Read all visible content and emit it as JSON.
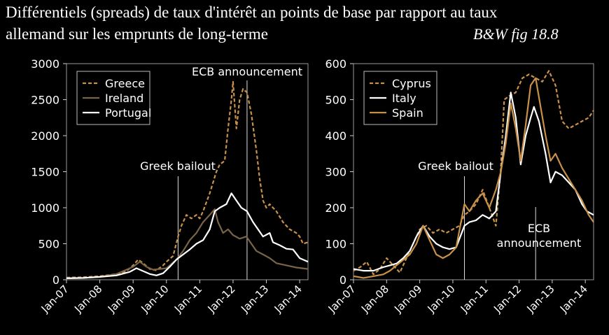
{
  "header": {
    "title_line1": "Différentiels (spreads) de taux d'intérêt an points de base par rapport au taux",
    "title_line2": "allemand sur les emprunts de long-terme",
    "credit": "B&W fig 18.8"
  },
  "colors": {
    "background": "#000000",
    "greece": "#c8914a",
    "ireland": "#7a6446",
    "portugal": "#ffffff",
    "cyprus": "#c8914a",
    "italy": "#ffffff",
    "spain": "#c8914a"
  },
  "chart_data": [
    {
      "type": "line",
      "title": "",
      "xlabel": "",
      "ylabel": "",
      "x_tick_labels": [
        "Jan-07",
        "Jan-08",
        "Jan-09",
        "Jan-10",
        "Jan-11",
        "Jan-12",
        "Jan-13",
        "Jan-14"
      ],
      "xlim": [
        2007.0,
        2014.25
      ],
      "ylim": [
        0,
        3000
      ],
      "y_ticks": [
        0,
        500,
        1000,
        1500,
        2000,
        2500,
        3000
      ],
      "legend_position": "top-left",
      "annotations": [
        {
          "label": "Greek bailout",
          "x": 2010.35
        },
        {
          "label": "ECB announcement",
          "x": 2012.42
        }
      ],
      "series": [
        {
          "name": "Greece",
          "style": "dashed",
          "color": "#c8914a",
          "points": [
            [
              2007.0,
              30
            ],
            [
              2007.5,
              35
            ],
            [
              2008.0,
              50
            ],
            [
              2008.5,
              80
            ],
            [
              2008.8,
              120
            ],
            [
              2009.0,
              200
            ],
            [
              2009.15,
              280
            ],
            [
              2009.3,
              230
            ],
            [
              2009.5,
              150
            ],
            [
              2009.7,
              130
            ],
            [
              2009.9,
              200
            ],
            [
              2010.0,
              250
            ],
            [
              2010.2,
              330
            ],
            [
              2010.35,
              600
            ],
            [
              2010.45,
              750
            ],
            [
              2010.6,
              900
            ],
            [
              2010.75,
              850
            ],
            [
              2010.9,
              900
            ],
            [
              2011.0,
              850
            ],
            [
              2011.1,
              950
            ],
            [
              2011.3,
              1200
            ],
            [
              2011.5,
              1500
            ],
            [
              2011.6,
              1600
            ],
            [
              2011.75,
              1650
            ],
            [
              2011.85,
              2100
            ],
            [
              2011.95,
              2500
            ],
            [
              2012.0,
              2750
            ],
            [
              2012.1,
              2100
            ],
            [
              2012.2,
              2500
            ],
            [
              2012.3,
              2650
            ],
            [
              2012.42,
              2600
            ],
            [
              2012.55,
              2300
            ],
            [
              2012.7,
              1800
            ],
            [
              2012.8,
              1400
            ],
            [
              2012.9,
              1100
            ],
            [
              2013.0,
              1000
            ],
            [
              2013.1,
              1050
            ],
            [
              2013.3,
              950
            ],
            [
              2013.5,
              800
            ],
            [
              2013.7,
              700
            ],
            [
              2013.9,
              650
            ],
            [
              2014.0,
              600
            ],
            [
              2014.1,
              500
            ],
            [
              2014.25,
              520
            ]
          ]
        },
        {
          "name": "Ireland",
          "style": "solid",
          "color": "#7a6446",
          "points": [
            [
              2007.0,
              20
            ],
            [
              2007.5,
              25
            ],
            [
              2008.0,
              40
            ],
            [
              2008.5,
              80
            ],
            [
              2009.0,
              180
            ],
            [
              2009.2,
              250
            ],
            [
              2009.4,
              180
            ],
            [
              2009.6,
              140
            ],
            [
              2009.8,
              150
            ],
            [
              2010.0,
              160
            ],
            [
              2010.3,
              280
            ],
            [
              2010.5,
              400
            ],
            [
              2010.7,
              550
            ],
            [
              2010.9,
              650
            ],
            [
              2011.1,
              800
            ],
            [
              2011.3,
              900
            ],
            [
              2011.45,
              980
            ],
            [
              2011.55,
              800
            ],
            [
              2011.7,
              650
            ],
            [
              2011.85,
              700
            ],
            [
              2012.0,
              620
            ],
            [
              2012.2,
              570
            ],
            [
              2012.4,
              600
            ],
            [
              2012.55,
              500
            ],
            [
              2012.7,
              400
            ],
            [
              2012.9,
              350
            ],
            [
              2013.1,
              300
            ],
            [
              2013.3,
              230
            ],
            [
              2013.6,
              200
            ],
            [
              2013.9,
              170
            ],
            [
              2014.25,
              150
            ]
          ]
        },
        {
          "name": "Portugal",
          "style": "solid",
          "color": "#ffffff",
          "points": [
            [
              2007.0,
              20
            ],
            [
              2007.5,
              25
            ],
            [
              2008.0,
              40
            ],
            [
              2008.5,
              60
            ],
            [
              2008.9,
              110
            ],
            [
              2009.1,
              160
            ],
            [
              2009.3,
              120
            ],
            [
              2009.5,
              80
            ],
            [
              2009.7,
              60
            ],
            [
              2009.9,
              90
            ],
            [
              2010.1,
              180
            ],
            [
              2010.3,
              280
            ],
            [
              2010.5,
              350
            ],
            [
              2010.7,
              420
            ],
            [
              2010.9,
              500
            ],
            [
              2011.1,
              550
            ],
            [
              2011.3,
              700
            ],
            [
              2011.45,
              950
            ],
            [
              2011.6,
              1000
            ],
            [
              2011.8,
              1050
            ],
            [
              2011.95,
              1200
            ],
            [
              2012.1,
              1100
            ],
            [
              2012.25,
              1000
            ],
            [
              2012.42,
              950
            ],
            [
              2012.6,
              800
            ],
            [
              2012.75,
              700
            ],
            [
              2012.9,
              600
            ],
            [
              2013.1,
              650
            ],
            [
              2013.2,
              520
            ],
            [
              2013.4,
              480
            ],
            [
              2013.6,
              430
            ],
            [
              2013.8,
              420
            ],
            [
              2014.0,
              300
            ],
            [
              2014.25,
              250
            ]
          ]
        }
      ]
    },
    {
      "type": "line",
      "title": "",
      "xlabel": "",
      "ylabel": "",
      "x_tick_labels": [
        "Jan-07",
        "Jan-08",
        "Jan-09",
        "Jan-10",
        "Jan-11",
        "Jan-12",
        "Jan-13",
        "Jan-14"
      ],
      "xlim": [
        2007.0,
        2014.25
      ],
      "ylim": [
        0,
        600
      ],
      "y_ticks": [
        0,
        100,
        200,
        300,
        400,
        500,
        600
      ],
      "legend_position": "top-left",
      "annotations": [
        {
          "label": "Greek bailout",
          "x": 2010.35
        },
        {
          "label": "ECB announcement",
          "x": 2012.5
        }
      ],
      "series": [
        {
          "name": "Cyprus",
          "style": "dashed",
          "color": "#c8914a",
          "points": [
            [
              2007.0,
              25
            ],
            [
              2007.2,
              35
            ],
            [
              2007.4,
              50
            ],
            [
              2007.6,
              15
            ],
            [
              2007.8,
              30
            ],
            [
              2008.0,
              60
            ],
            [
              2008.2,
              40
            ],
            [
              2008.4,
              20
            ],
            [
              2008.6,
              60
            ],
            [
              2008.8,
              100
            ],
            [
              2009.0,
              140
            ],
            [
              2009.2,
              150
            ],
            [
              2009.4,
              130
            ],
            [
              2009.6,
              140
            ],
            [
              2009.8,
              130
            ],
            [
              2010.0,
              140
            ],
            [
              2010.2,
              150
            ],
            [
              2010.35,
              180
            ],
            [
              2010.5,
              190
            ],
            [
              2010.7,
              210
            ],
            [
              2010.9,
              250
            ],
            [
              2011.1,
              200
            ],
            [
              2011.3,
              150
            ],
            [
              2011.45,
              310
            ],
            [
              2011.55,
              500
            ],
            [
              2011.7,
              510
            ],
            [
              2011.9,
              520
            ],
            [
              2012.1,
              560
            ],
            [
              2012.3,
              570
            ],
            [
              2012.5,
              560
            ],
            [
              2012.7,
              550
            ],
            [
              2012.9,
              580
            ],
            [
              2013.1,
              540
            ],
            [
              2013.3,
              440
            ],
            [
              2013.5,
              420
            ],
            [
              2013.7,
              430
            ],
            [
              2013.9,
              440
            ],
            [
              2014.1,
              450
            ],
            [
              2014.25,
              470
            ]
          ]
        },
        {
          "name": "Italy",
          "style": "solid",
          "color": "#ffffff",
          "points": [
            [
              2007.0,
              30
            ],
            [
              2007.3,
              25
            ],
            [
              2007.6,
              25
            ],
            [
              2007.9,
              35
            ],
            [
              2008.1,
              40
            ],
            [
              2008.3,
              45
            ],
            [
              2008.5,
              60
            ],
            [
              2008.7,
              80
            ],
            [
              2008.9,
              120
            ],
            [
              2009.1,
              150
            ],
            [
              2009.3,
              120
            ],
            [
              2009.5,
              100
            ],
            [
              2009.7,
              90
            ],
            [
              2009.9,
              85
            ],
            [
              2010.1,
              90
            ],
            [
              2010.35,
              150
            ],
            [
              2010.5,
              160
            ],
            [
              2010.7,
              165
            ],
            [
              2010.9,
              180
            ],
            [
              2011.1,
              170
            ],
            [
              2011.3,
              190
            ],
            [
              2011.45,
              300
            ],
            [
              2011.6,
              400
            ],
            [
              2011.75,
              520
            ],
            [
              2011.9,
              450
            ],
            [
              2012.05,
              320
            ],
            [
              2012.2,
              400
            ],
            [
              2012.35,
              450
            ],
            [
              2012.45,
              480
            ],
            [
              2012.6,
              440
            ],
            [
              2012.8,
              350
            ],
            [
              2012.95,
              270
            ],
            [
              2013.1,
              300
            ],
            [
              2013.3,
              290
            ],
            [
              2013.5,
              270
            ],
            [
              2013.7,
              250
            ],
            [
              2013.9,
              210
            ],
            [
              2014.05,
              190
            ],
            [
              2014.25,
              180
            ]
          ]
        },
        {
          "name": "Spain",
          "style": "solid",
          "color": "#c8914a",
          "points": [
            [
              2007.0,
              10
            ],
            [
              2007.3,
              5
            ],
            [
              2007.6,
              10
            ],
            [
              2007.9,
              15
            ],
            [
              2008.1,
              25
            ],
            [
              2008.3,
              40
            ],
            [
              2008.5,
              55
            ],
            [
              2008.7,
              70
            ],
            [
              2008.9,
              100
            ],
            [
              2009.1,
              150
            ],
            [
              2009.3,
              110
            ],
            [
              2009.5,
              70
            ],
            [
              2009.7,
              60
            ],
            [
              2009.9,
              70
            ],
            [
              2010.1,
              90
            ],
            [
              2010.35,
              210
            ],
            [
              2010.5,
              190
            ],
            [
              2010.7,
              220
            ],
            [
              2010.9,
              240
            ],
            [
              2011.1,
              200
            ],
            [
              2011.3,
              250
            ],
            [
              2011.45,
              300
            ],
            [
              2011.6,
              380
            ],
            [
              2011.75,
              490
            ],
            [
              2011.9,
              420
            ],
            [
              2012.05,
              330
            ],
            [
              2012.2,
              430
            ],
            [
              2012.35,
              540
            ],
            [
              2012.5,
              560
            ],
            [
              2012.65,
              480
            ],
            [
              2012.8,
              400
            ],
            [
              2012.95,
              330
            ],
            [
              2013.1,
              350
            ],
            [
              2013.3,
              310
            ],
            [
              2013.5,
              280
            ],
            [
              2013.7,
              250
            ],
            [
              2013.9,
              220
            ],
            [
              2014.1,
              180
            ],
            [
              2014.25,
              160
            ]
          ]
        }
      ]
    }
  ]
}
